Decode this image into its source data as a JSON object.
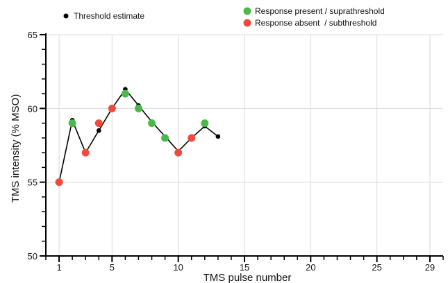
{
  "chart_data": {
    "type": "scatter",
    "title": "",
    "xlabel": "TMS pulse number",
    "ylabel": "TMS intensity (% MSO)",
    "xlim": [
      0,
      30
    ],
    "ylim": [
      50,
      65
    ],
    "x_ticks": [
      1,
      5,
      10,
      15,
      20,
      25,
      29
    ],
    "y_ticks": [
      50,
      55,
      60,
      65
    ],
    "grid": true,
    "legend_position": "top",
    "colors": {
      "threshold": "#000000",
      "response_present": "#4cb84c",
      "response_absent": "#f04a3c",
      "line": "#000000",
      "grid": "#d9d9d9",
      "axis": "#000000"
    },
    "series": [
      {
        "name": "Threshold estimate",
        "key": "threshold",
        "x": [
          1,
          2,
          3,
          4,
          5,
          6,
          7,
          8,
          9,
          10,
          11,
          12,
          13
        ],
        "y": [
          55,
          59.2,
          57,
          58.5,
          60,
          61.3,
          60.2,
          59.1,
          58.1,
          57.1,
          58,
          58.8,
          58.1
        ]
      },
      {
        "name": "Response present / suprathreshold",
        "key": "response_present",
        "x": [
          2,
          6,
          7,
          8,
          9,
          12
        ],
        "y": [
          59,
          61,
          60,
          59,
          58,
          59
        ]
      },
      {
        "name": "Response absent  / subthreshold",
        "key": "response_absent",
        "x": [
          1,
          3,
          4,
          5,
          10,
          11
        ],
        "y": [
          55,
          57,
          59,
          60,
          57,
          58
        ]
      }
    ]
  }
}
